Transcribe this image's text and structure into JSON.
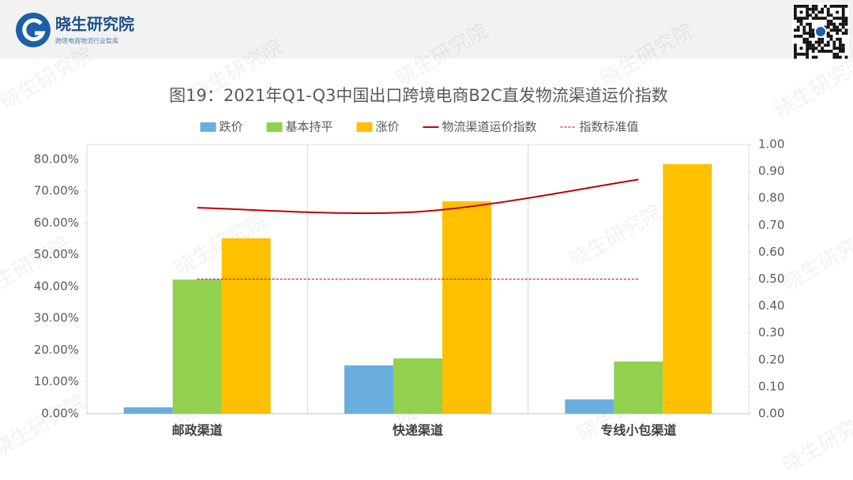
{
  "header": {
    "brand": "晓生研究院",
    "tagline": "跨境电商物流行业智库"
  },
  "watermark": "晓生研究院",
  "chart_data": {
    "type": "bar",
    "title": "图19：2021年Q1-Q3中国出口跨境电商B2C直发物流渠道运价指数",
    "categories": [
      "邮政渠道",
      "快递渠道",
      "专线小包渠道"
    ],
    "series": [
      {
        "name": "跌价",
        "color": "#6aaee0",
        "values": [
          2.0,
          15.2,
          4.5
        ]
      },
      {
        "name": "基本持平",
        "color": "#92d050",
        "values": [
          42.2,
          17.4,
          16.4
        ]
      },
      {
        "name": "涨价",
        "color": "#ffc000",
        "values": [
          55.2,
          66.8,
          78.5
        ]
      },
      {
        "name": "物流渠道运价指数",
        "color": "#c00000",
        "type": "line",
        "axis": "y2",
        "values": [
          0.765,
          0.75,
          0.87
        ]
      },
      {
        "name": "指数标准值",
        "color": "#c00000",
        "type": "line",
        "axis": "y2",
        "dash": true,
        "values": [
          0.5,
          0.5,
          0.5
        ]
      }
    ],
    "ylim": [
      0,
      84.7
    ],
    "yticks": [
      {
        "value": 0,
        "label": "0.00%"
      },
      {
        "value": 10,
        "label": "10.00%"
      },
      {
        "value": 20,
        "label": "20.00%"
      },
      {
        "value": 30,
        "label": "30.00%"
      },
      {
        "value": 40,
        "label": "40.00%"
      },
      {
        "value": 50,
        "label": "50.00%"
      },
      {
        "value": 60,
        "label": "60.00%"
      },
      {
        "value": 70,
        "label": "70.00%"
      },
      {
        "value": 80,
        "label": "80.00%"
      }
    ],
    "y2lim": [
      0,
      1
    ],
    "y2ticks": [
      {
        "value": 0,
        "label": "0.00"
      },
      {
        "value": 0.1,
        "label": "0.10"
      },
      {
        "value": 0.2,
        "label": "0.20"
      },
      {
        "value": 0.3,
        "label": "0.30"
      },
      {
        "value": 0.4,
        "label": "0.40"
      },
      {
        "value": 0.5,
        "label": "0.50"
      },
      {
        "value": 0.6,
        "label": "0.60"
      },
      {
        "value": 0.7,
        "label": "0.70"
      },
      {
        "value": 0.8,
        "label": "0.80"
      },
      {
        "value": 0.9,
        "label": "0.90"
      },
      {
        "value": 1,
        "label": "1.00"
      }
    ],
    "legend": "top"
  }
}
